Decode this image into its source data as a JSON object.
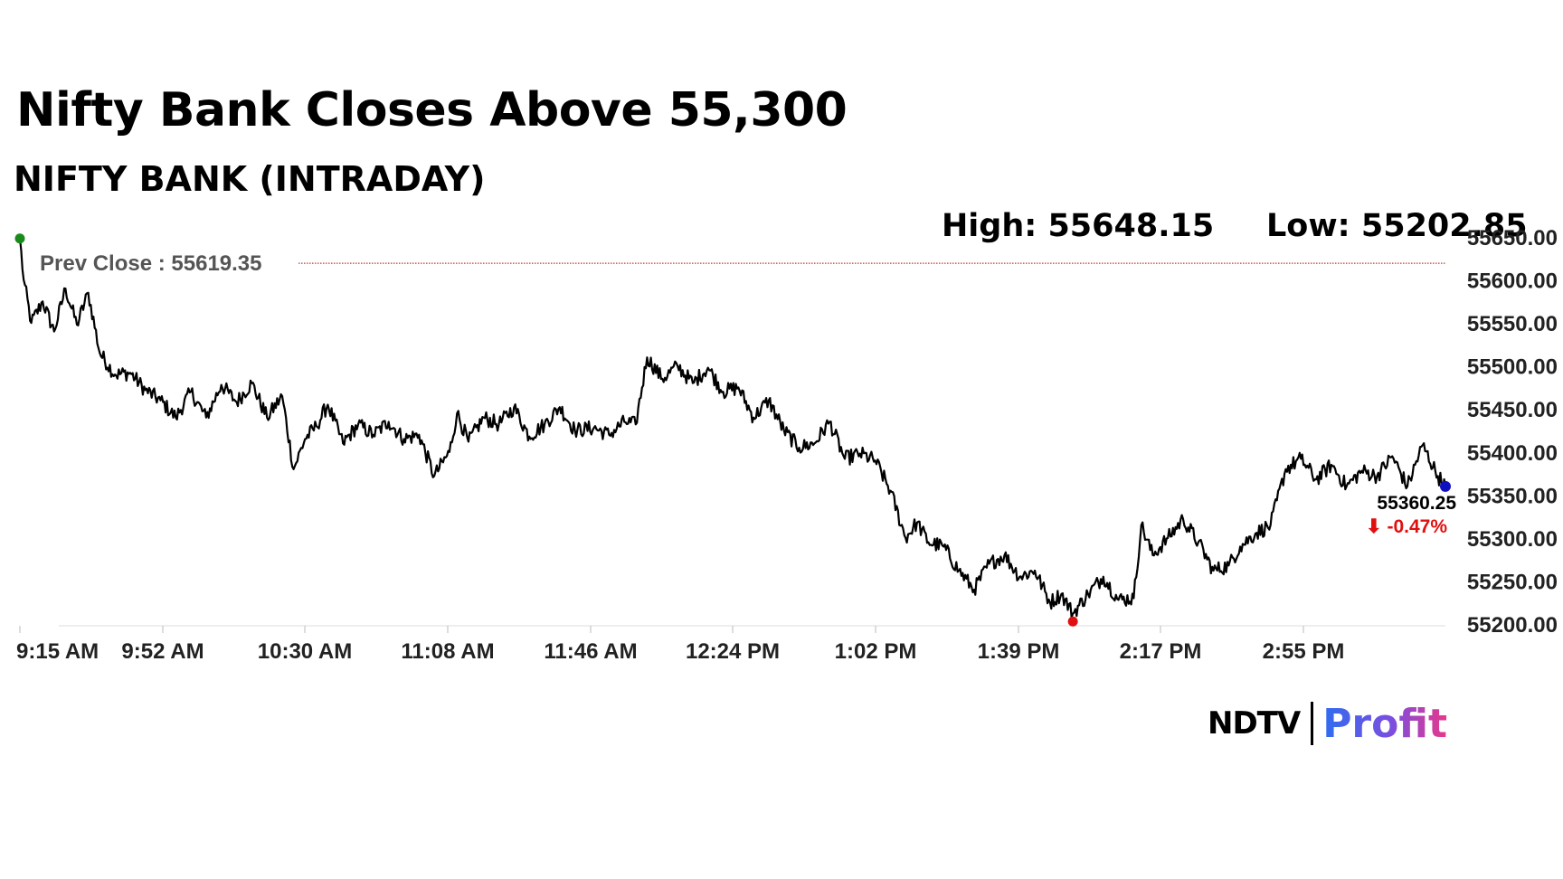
{
  "headline": "Nifty Bank Closes Above 55,300",
  "subtitle": "NIFTY BANK (INTRADAY)",
  "stats": {
    "high_label": "High: 55648.15",
    "low_label": "Low: 55202.85"
  },
  "brand": {
    "left": "NDTV",
    "right": "Profit",
    "colors": {
      "ndtv_dot": "#e0242a",
      "profit_start": "#2f6df0",
      "profit_end": "#e8388a"
    }
  },
  "chart_data": {
    "type": "line",
    "title": "NIFTY BANK (INTRADAY)",
    "xlabel": "",
    "ylabel": "",
    "ylim": [
      55200,
      55650
    ],
    "y_ticks": [
      "55650.00",
      "55600.00",
      "55550.00",
      "55500.00",
      "55450.00",
      "55400.00",
      "55350.00",
      "55300.00",
      "55250.00",
      "55200.00"
    ],
    "x_ticks": [
      "9:15 AM",
      "9:52 AM",
      "10:30 AM",
      "11:08 AM",
      "11:46 AM",
      "12:24 PM",
      "1:02 PM",
      "1:39 PM",
      "2:17 PM",
      "2:55 PM"
    ],
    "x_range_minutes": [
      555,
      930
    ],
    "prev_close": {
      "label": "Prev Close : 55619.35",
      "value": 55619.35
    },
    "high": 55648.15,
    "low": 55202.85,
    "last": {
      "value": 55360.25,
      "label": "55360.25",
      "change_label": "⬇ -0.47%"
    },
    "grid": false,
    "colors": {
      "line": "#000000",
      "prev_close": "#c0392b",
      "open_marker": "#1a8a1a",
      "low_marker": "#e01010",
      "last_marker": "#1010c0",
      "change_text": "#e01010"
    },
    "series": [
      {
        "times": [
          "9:15",
          "9:16",
          "9:18",
          "9:21",
          "9:24",
          "9:27",
          "9:30",
          "9:33",
          "9:36",
          "9:40",
          "9:44",
          "9:48",
          "9:52",
          "9:56",
          "10:00",
          "10:04",
          "10:08",
          "10:12",
          "10:16",
          "10:20",
          "10:24",
          "10:27",
          "10:30",
          "10:33",
          "10:36",
          "10:40",
          "10:44",
          "10:48",
          "10:52",
          "10:56",
          "11:00",
          "11:04",
          "11:08",
          "11:10",
          "11:13",
          "11:17",
          "11:21",
          "11:25",
          "11:29",
          "11:33",
          "11:37",
          "11:41",
          "11:46",
          "11:50",
          "11:54",
          "11:57",
          "12:00",
          "12:04",
          "12:08",
          "12:12",
          "12:16",
          "12:20",
          "12:24",
          "12:28",
          "12:32",
          "12:36",
          "12:40",
          "12:44",
          "12:48",
          "12:52",
          "12:56",
          "13:00",
          "13:04",
          "13:08",
          "13:11",
          "13:14",
          "13:18",
          "13:22",
          "13:26",
          "13:30",
          "13:34",
          "13:38",
          "13:42",
          "13:46",
          "13:49",
          "13:52",
          "13:56",
          "14:00",
          "14:04",
          "14:08",
          "14:10",
          "14:13",
          "14:17",
          "14:21",
          "14:25",
          "14:29",
          "14:33",
          "14:36",
          "14:40",
          "14:44",
          "14:48",
          "14:52",
          "14:56",
          "15:00",
          "15:04",
          "15:08",
          "15:12",
          "15:16",
          "15:20",
          "15:24",
          "15:28",
          "15:30"
        ],
        "values": [
          55648,
          55600,
          55550,
          55575,
          55540,
          55590,
          55548,
          55585,
          55515,
          55490,
          55492,
          55472,
          55460,
          55440,
          55470,
          55440,
          55478,
          55458,
          55480,
          55440,
          55465,
          55380,
          55415,
          55430,
          55455,
          55410,
          55432,
          55420,
          55435,
          55415,
          55420,
          55372,
          55400,
          55445,
          55412,
          55440,
          55432,
          55452,
          55418,
          55432,
          55452,
          55425,
          55428,
          55420,
          55435,
          55432,
          55510,
          55485,
          55500,
          55480,
          55498,
          55470,
          55475,
          55440,
          55460,
          55425,
          55405,
          55410,
          55435,
          55392,
          55398,
          55390,
          55355,
          55300,
          55318,
          55295,
          55290,
          55262,
          55240,
          55270,
          55280,
          55255,
          55262,
          55225,
          55235,
          55212,
          55235,
          55255,
          55228,
          55230,
          55315,
          55280,
          55300,
          55322,
          55295,
          55262,
          55268,
          55290,
          55305,
          55315,
          55380,
          55392,
          55368,
          55385,
          55360,
          55378,
          55372,
          55395,
          55360,
          55408,
          55372,
          55360
        ]
      }
    ]
  }
}
